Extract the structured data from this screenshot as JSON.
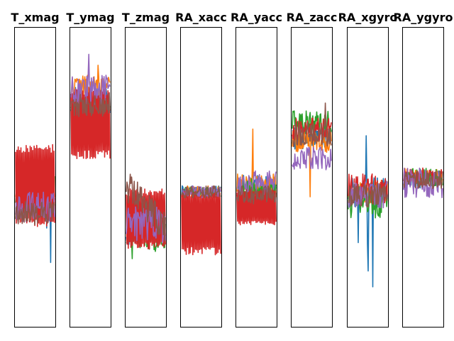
{
  "chart_data": {
    "type": "line",
    "colors": [
      "#1f77b4",
      "#ff7f0e",
      "#2ca02c",
      "#d62728",
      "#9467bd",
      "#8c564b"
    ],
    "grid": false,
    "ylim": [
      0,
      1
    ],
    "points_per_series": 60,
    "panels": [
      {
        "title": "T_xmag",
        "series": [
          {
            "center": 0.42,
            "amplitude": 0.05,
            "spikes": [
              [
                0.9,
                -0.16
              ],
              [
                0.8,
                -0.1
              ]
            ],
            "seed": 11
          },
          {
            "center": 0.46,
            "amplitude": 0.05,
            "spikes": [],
            "seed": 12
          },
          {
            "center": 0.45,
            "amplitude": 0.07,
            "spikes": [],
            "seed": 13
          },
          {
            "center": 0.47,
            "amplitude": 0.14,
            "square": true,
            "spikes": [],
            "seed": 14
          },
          {
            "center": 0.4,
            "amplitude": 0.05,
            "spikes": [],
            "seed": 15
          },
          {
            "center": 0.38,
            "amplitude": 0.04,
            "spikes": [],
            "seed": 16
          }
        ]
      },
      {
        "title": "T_ymag",
        "series": [
          {
            "center": 0.76,
            "amplitude": 0.05,
            "spikes": [],
            "seed": 21
          },
          {
            "center": 0.8,
            "amplitude": 0.04,
            "spikes": [
              [
                0.7,
                0.06
              ]
            ],
            "seed": 22
          },
          {
            "center": 0.75,
            "amplitude": 0.04,
            "spikes": [],
            "seed": 23
          },
          {
            "center": 0.68,
            "amplitude": 0.12,
            "square": true,
            "spikes": [],
            "seed": 24
          },
          {
            "center": 0.79,
            "amplitude": 0.05,
            "spikes": [
              [
                0.45,
                0.09
              ]
            ],
            "seed": 25
          },
          {
            "center": 0.74,
            "amplitude": 0.04,
            "spikes": [],
            "seed": 26
          }
        ]
      },
      {
        "title": "T_zmag",
        "series": [
          {
            "center": 0.33,
            "amplitude": 0.06,
            "spikes": [],
            "seed": 31
          },
          {
            "center": 0.34,
            "amplitude": 0.05,
            "spikes": [],
            "seed": 32
          },
          {
            "center": 0.31,
            "amplitude": 0.06,
            "spikes": [
              [
                0.15,
                -0.08
              ]
            ],
            "seed": 33
          },
          {
            "center": 0.36,
            "amplitude": 0.1,
            "square": true,
            "spikes": [],
            "seed": 34
          },
          {
            "center": 0.34,
            "amplitude": 0.06,
            "spikes": [],
            "seed": 35
          },
          {
            "center": 0.48,
            "amplitude": 0.06,
            "trend": -0.14,
            "spikes": [
              [
                0.45,
                0.05
              ]
            ],
            "seed": 36
          }
        ]
      },
      {
        "title": "RA_xacc",
        "series": [
          {
            "center": 0.45,
            "amplitude": 0.02,
            "spikes": [],
            "seed": 41
          },
          {
            "center": 0.45,
            "amplitude": 0.02,
            "spikes": [],
            "seed": 42
          },
          {
            "center": 0.45,
            "amplitude": 0.02,
            "spikes": [],
            "seed": 43
          },
          {
            "center": 0.35,
            "amplitude": 0.11,
            "square": true,
            "spikes": [],
            "seed": 44
          },
          {
            "center": 0.45,
            "amplitude": 0.02,
            "spikes": [],
            "seed": 45
          },
          {
            "center": 0.45,
            "amplitude": 0.02,
            "spikes": [],
            "seed": 46
          }
        ]
      },
      {
        "title": "RA_yacc",
        "series": [
          {
            "center": 0.47,
            "amplitude": 0.04,
            "spikes": [],
            "seed": 51
          },
          {
            "center": 0.47,
            "amplitude": 0.04,
            "spikes": [
              [
                0.4,
                0.22
              ]
            ],
            "seed": 52
          },
          {
            "center": 0.46,
            "amplitude": 0.04,
            "spikes": [],
            "seed": 53
          },
          {
            "center": 0.4,
            "amplitude": 0.06,
            "square": true,
            "spikes": [],
            "seed": 54
          },
          {
            "center": 0.48,
            "amplitude": 0.04,
            "spikes": [],
            "seed": 55
          },
          {
            "center": 0.44,
            "amplitude": 0.03,
            "spikes": [],
            "seed": 56
          }
        ]
      },
      {
        "title": "RA_zacc",
        "series": [
          {
            "center": 0.63,
            "amplitude": 0.04,
            "spikes": [],
            "seed": 61
          },
          {
            "center": 0.62,
            "amplitude": 0.04,
            "spikes": [
              [
                0.45,
                -0.16
              ]
            ],
            "seed": 62
          },
          {
            "center": 0.68,
            "amplitude": 0.04,
            "spikes": [],
            "seed": 63
          },
          {
            "center": 0.66,
            "amplitude": 0.04,
            "spikes": [],
            "seed": 64
          },
          {
            "center": 0.56,
            "amplitude": 0.04,
            "spikes": [],
            "seed": 65
          },
          {
            "center": 0.64,
            "amplitude": 0.04,
            "spikes": [
              [
                0.85,
                0.08
              ]
            ],
            "seed": 66
          }
        ]
      },
      {
        "title": "RA_xgyro",
        "series": [
          {
            "center": 0.45,
            "amplitude": 0.05,
            "spikes": [
              [
                0.25,
                -0.18
              ],
              [
                0.45,
                0.23
              ],
              [
                0.62,
                -0.32
              ],
              [
                0.5,
                -0.22
              ]
            ],
            "seed": 71
          },
          {
            "center": 0.45,
            "amplitude": 0.04,
            "spikes": [],
            "seed": 72
          },
          {
            "center": 0.42,
            "amplitude": 0.06,
            "spikes": [],
            "seed": 73
          },
          {
            "center": 0.46,
            "amplitude": 0.05,
            "spikes": [],
            "seed": 74
          },
          {
            "center": 0.44,
            "amplitude": 0.05,
            "spikes": [],
            "seed": 75
          },
          {
            "center": 0.44,
            "amplitude": 0.04,
            "spikes": [],
            "seed": 76
          }
        ]
      },
      {
        "title": "RA_ygyro",
        "series": [
          {
            "center": 0.49,
            "amplitude": 0.03,
            "spikes": [],
            "seed": 81
          },
          {
            "center": 0.5,
            "amplitude": 0.03,
            "spikes": [],
            "seed": 82
          },
          {
            "center": 0.5,
            "amplitude": 0.03,
            "spikes": [],
            "seed": 83
          },
          {
            "center": 0.5,
            "amplitude": 0.03,
            "spikes": [],
            "seed": 84
          },
          {
            "center": 0.48,
            "amplitude": 0.05,
            "spikes": [],
            "seed": 85
          },
          {
            "center": 0.49,
            "amplitude": 0.03,
            "spikes": [],
            "seed": 86
          }
        ]
      }
    ]
  }
}
